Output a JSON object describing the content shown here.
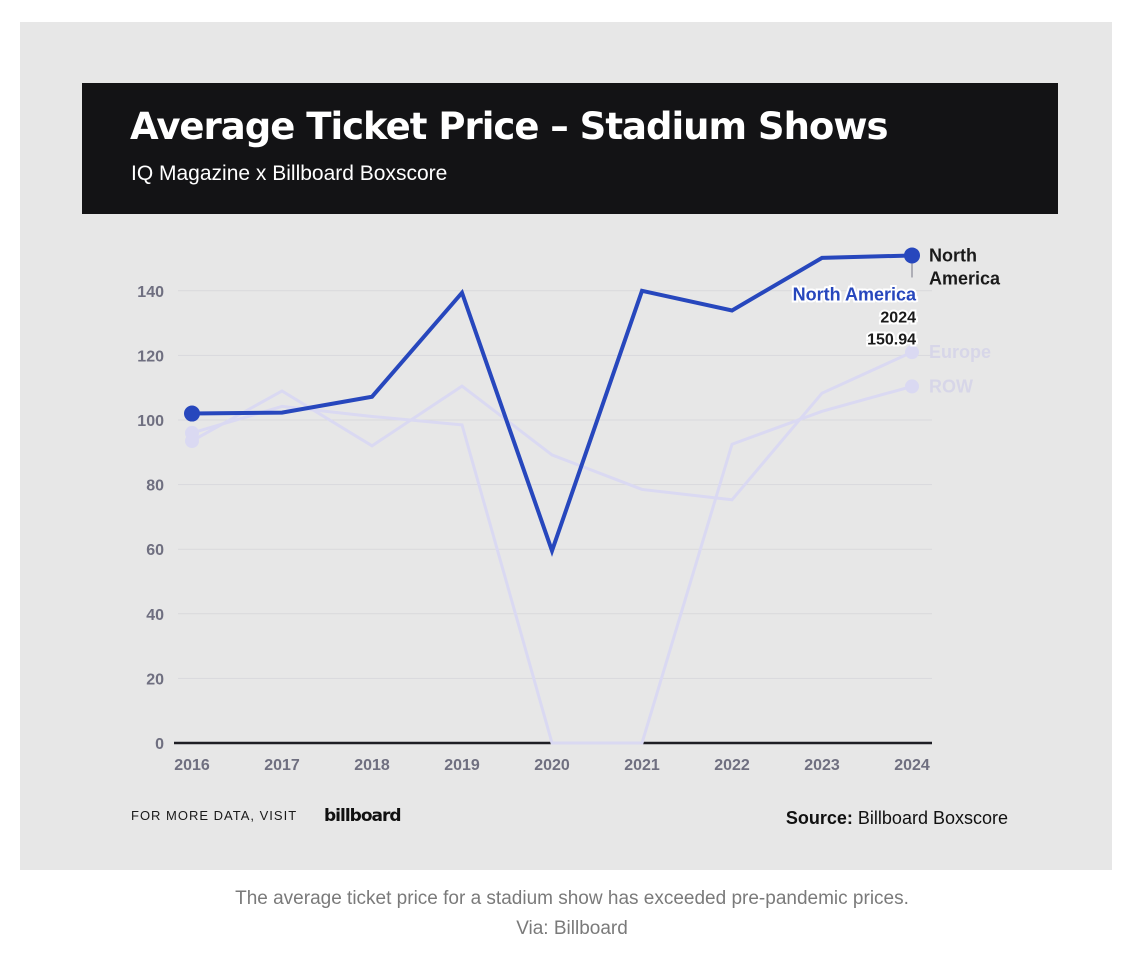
{
  "header": {
    "title": "Average Ticket Price – Stadium Shows",
    "subtitle": "IQ Magazine x Billboard Boxscore"
  },
  "chart_data": {
    "type": "line",
    "x": [
      "2016",
      "2017",
      "2018",
      "2019",
      "2020",
      "2021",
      "2022",
      "2023",
      "2024"
    ],
    "ylim": [
      0,
      150
    ],
    "yticks": [
      0,
      20,
      40,
      60,
      80,
      100,
      120,
      140
    ],
    "grid": true,
    "series": [
      {
        "name": "North America",
        "end_label": "North America",
        "color": "#2747bd",
        "highlighted": true,
        "values": [
          102,
          102.3,
          107.2,
          139.4,
          59.5,
          140,
          133.9,
          150.2,
          150.94
        ]
      },
      {
        "name": "Europe",
        "end_label": "Europe",
        "color": "#dad9f2",
        "highlighted": false,
        "values": [
          93.5,
          109,
          92,
          110.5,
          89.2,
          78.5,
          75.3,
          108.3,
          121
        ]
      },
      {
        "name": "ROW",
        "end_label": "ROW",
        "color": "#dad9f2",
        "highlighted": false,
        "values": [
          96,
          104.2,
          101.1,
          98.5,
          0,
          0,
          92.5,
          102.7,
          110.4
        ]
      }
    ],
    "tooltip": {
      "series": "North America",
      "x": "2024",
      "value": "150.94"
    }
  },
  "footer": {
    "visit_text": "FOR MORE DATA, VISIT",
    "logo_text": "billboard",
    "source_label": "Source:",
    "source_value": "Billboard Boxscore"
  },
  "caption": {
    "line1": "The average ticket price for a stadium show has exceeded pre-pandemic prices.",
    "line2": "Via: Billboard"
  }
}
